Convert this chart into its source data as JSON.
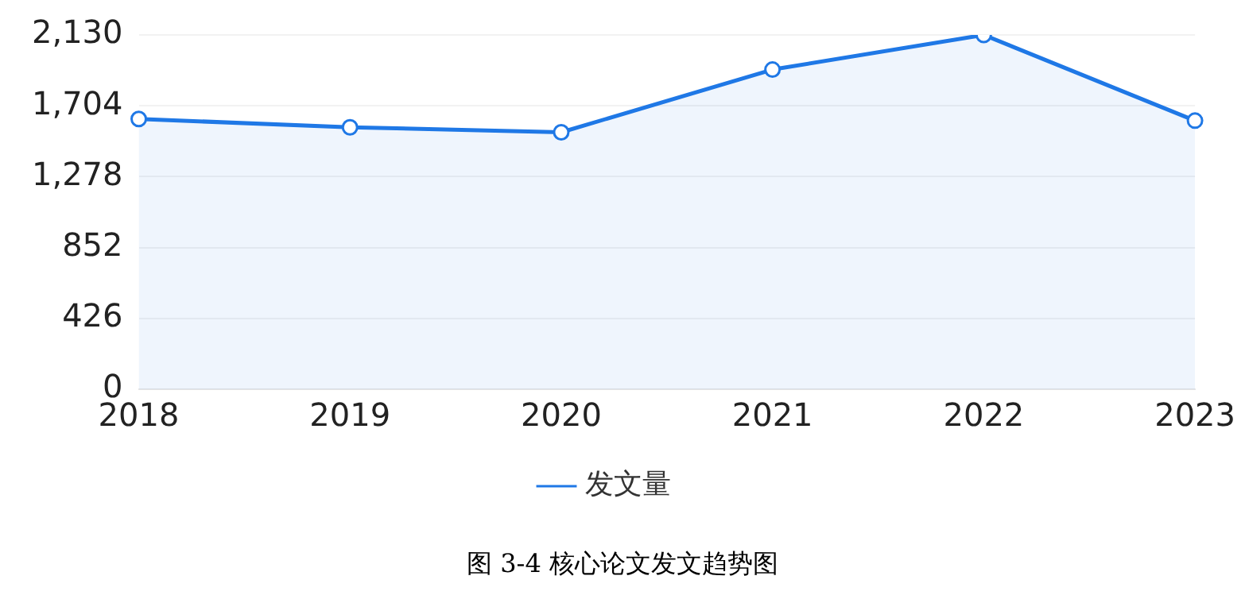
{
  "chart_data": {
    "type": "area",
    "categories": [
      "2018",
      "2019",
      "2020",
      "2021",
      "2022",
      "2023"
    ],
    "series": [
      {
        "name": "发文量",
        "color": "#1f78e6",
        "values": [
          1625,
          1575,
          1545,
          1922,
          2130,
          1615
        ]
      }
    ],
    "ylim": [
      0,
      2130
    ],
    "yticks": [
      0,
      426,
      852,
      {
        "value": 1278,
        "label": "1,278"
      },
      {
        "value": 1704,
        "label": "1,704"
      },
      {
        "value": 2130,
        "label": "2,130"
      }
    ],
    "grid": "y",
    "legend": "bottom",
    "marker": "circle",
    "line_style": "solid",
    "annotations": [
      "图 3-4 核心论文发文趋势图"
    ]
  }
}
